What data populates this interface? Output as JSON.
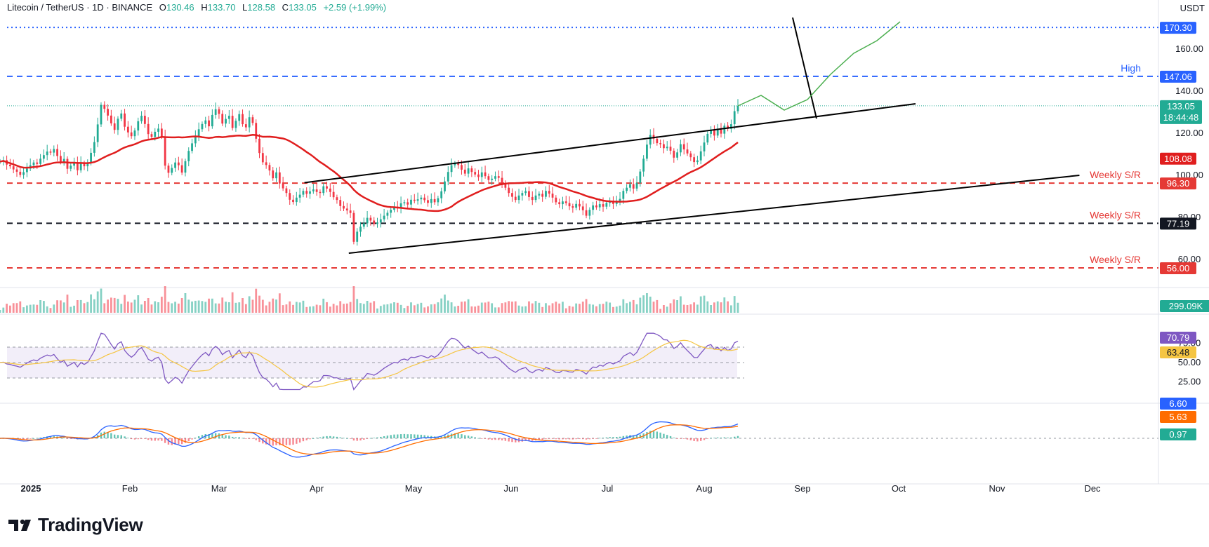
{
  "legend": {
    "symbol": "Litecoin / TetherUS · 1D · BINANCE",
    "open_label": "O",
    "open": "130.46",
    "high_label": "H",
    "high": "133.70",
    "low_label": "L",
    "low": "128.58",
    "close_label": "C",
    "close": "133.05",
    "change": "+2.59 (+1.99%)"
  },
  "currency": "USDT",
  "brand": {
    "name": "TradingView"
  },
  "colors": {
    "up": "#22ab94",
    "down": "#f23645",
    "ma": "#e01e1e",
    "rsi": "#7e57c2",
    "rsi_ma": "#f5c542",
    "macd": "#2962ff",
    "signal": "#ff6d00",
    "level_blue": "#2962ff",
    "level_red": "#e53935"
  },
  "chart_data": {
    "type": "candlestick",
    "x_labels": [
      "2025",
      "Feb",
      "Mar",
      "Apr",
      "May",
      "Jun",
      "Jul",
      "Aug",
      "Sep",
      "Oct",
      "Nov",
      "Dec"
    ],
    "price_axis": {
      "ticks": [
        "60.00",
        "80.00",
        "100.00",
        "120.00",
        "140.00",
        "160.00"
      ],
      "range": [
        50,
        176
      ]
    },
    "levels": [
      {
        "value": 170.3,
        "label": "",
        "tag": "170.30",
        "style": "dotted",
        "color": "#2962ff"
      },
      {
        "value": 147.06,
        "label": "High",
        "tag": "147.06",
        "style": "dashed",
        "color": "#2962ff"
      },
      {
        "value": 96.3,
        "label": "Weekly S/R",
        "tag": "96.30",
        "style": "dashed",
        "color": "#e53935"
      },
      {
        "value": 77.19,
        "label": "Weekly S/R",
        "tag": "77.19",
        "style": "dashed",
        "color": "#131722"
      },
      {
        "value": 56.0,
        "label": "Weekly S/R",
        "tag": "56.00",
        "style": "dashed",
        "color": "#e53935"
      }
    ],
    "last_price": {
      "value": 133.05,
      "tag": "133.05",
      "countdown": "18:44:48"
    },
    "ma": {
      "value": 108.08,
      "tag": "108.08"
    },
    "channel": {
      "upper": [
        [
          "2025-03-25",
          96.5
        ],
        [
          "2025-09-20",
          134
        ]
      ],
      "lower": [
        [
          "2025-04-07",
          63
        ],
        [
          "2025-11-07",
          100
        ]
      ]
    },
    "projection_arrow": [
      [
        "2025-08-15",
        175
      ],
      [
        "2025-08-22",
        127
      ]
    ],
    "projection_path": [
      [
        133,
        138,
        131,
        136,
        148,
        158,
        164,
        173
      ]
    ],
    "closes": [
      106.5,
      107.2,
      105.1,
      104.3,
      102.8,
      101.7,
      100.2,
      101.5,
      103.2,
      104.8,
      106.1,
      105.4,
      107.9,
      109.6,
      111.3,
      110.8,
      112.5,
      109.2,
      106.4,
      107.8,
      103.1,
      104.6,
      106.2,
      102.4,
      105.8,
      104.3,
      105.9,
      110.7,
      115.8,
      124.2,
      133.5,
      131.6,
      128.4,
      124.7,
      121.6,
      126.9,
      129.4,
      123.1,
      120.4,
      118.6,
      121.3,
      125.7,
      128.3,
      124.4,
      119.6,
      118.3,
      120.7,
      122.2,
      118.5,
      104.6,
      101.2,
      103.5,
      106.1,
      104.8,
      101.3,
      106.7,
      111.6,
      115.2,
      118.7,
      121.9,
      124.4,
      126.1,
      123.3,
      128.7,
      131.4,
      129.2,
      124.6,
      126.8,
      128.3,
      122.5,
      125.9,
      129.1,
      124.3,
      122.8,
      127.6,
      124.9,
      117.4,
      110.6,
      106.2,
      104.9,
      102.3,
      98.6,
      101.4,
      96.1,
      93.8,
      91.6,
      88.4,
      87.3,
      89.4,
      90.8,
      92.6,
      91.2,
      92.4,
      93.3,
      92.1,
      91.6,
      94.8,
      93.7,
      92.1,
      89.6,
      88.3,
      85.4,
      84.2,
      83.3,
      82.1,
      68.4,
      73.2,
      75.6,
      77.2,
      79.8,
      78.5,
      76.9,
      77.6,
      79.1,
      80.8,
      82.2,
      83.6,
      85.1,
      84.3,
      86.7,
      87.2,
      86.1,
      88.4,
      87.9,
      88.6,
      89.4,
      88.2,
      86.9,
      88.7,
      87.2,
      89.1,
      92.4,
      97.1,
      101.6,
      104.8,
      105.6,
      104.9,
      102.7,
      100.8,
      103.3,
      101.6,
      100.4,
      99.2,
      101.4,
      99.6,
      97.8,
      98.4,
      99.6,
      98.8,
      96.4,
      94.1,
      91.6,
      89.8,
      88.3,
      90.4,
      91.6,
      92.5,
      89.7,
      88.3,
      90.4,
      91.2,
      89.8,
      92.6,
      91.3,
      89.4,
      87.2,
      86.3,
      87.6,
      86.8,
      85.3,
      84.6,
      86.4,
      85.2,
      83.4,
      80.8,
      83.6,
      85.7,
      84.8,
      86.3,
      85.1,
      86.9,
      87.8,
      86.4,
      87.6,
      88.8,
      92.6,
      94.1,
      95.8,
      93.7,
      96.4,
      101.8,
      107.9,
      114.6,
      119.2,
      117.4,
      115.3,
      114.8,
      112.9,
      113.6,
      111.7,
      108.4,
      110.9,
      114.8,
      112.3,
      110.4,
      108.6,
      106.3,
      107.1,
      111.4,
      115.6,
      119.7,
      121.6,
      118.9,
      121.7,
      119.8,
      123.6,
      122.1,
      124.3,
      130.5,
      133.05
    ],
    "series": [
      {
        "name": "Volume",
        "value_tag": "299.09K"
      },
      {
        "name": "RSI",
        "value_tag": "70.79",
        "ma_tag": "63.48",
        "ticks": [
          "75.00",
          "50.00",
          "25.00"
        ]
      },
      {
        "name": "MACD",
        "value_tag": "6.60",
        "signal_tag": "5.63",
        "hist_tag": "0.97"
      }
    ]
  }
}
